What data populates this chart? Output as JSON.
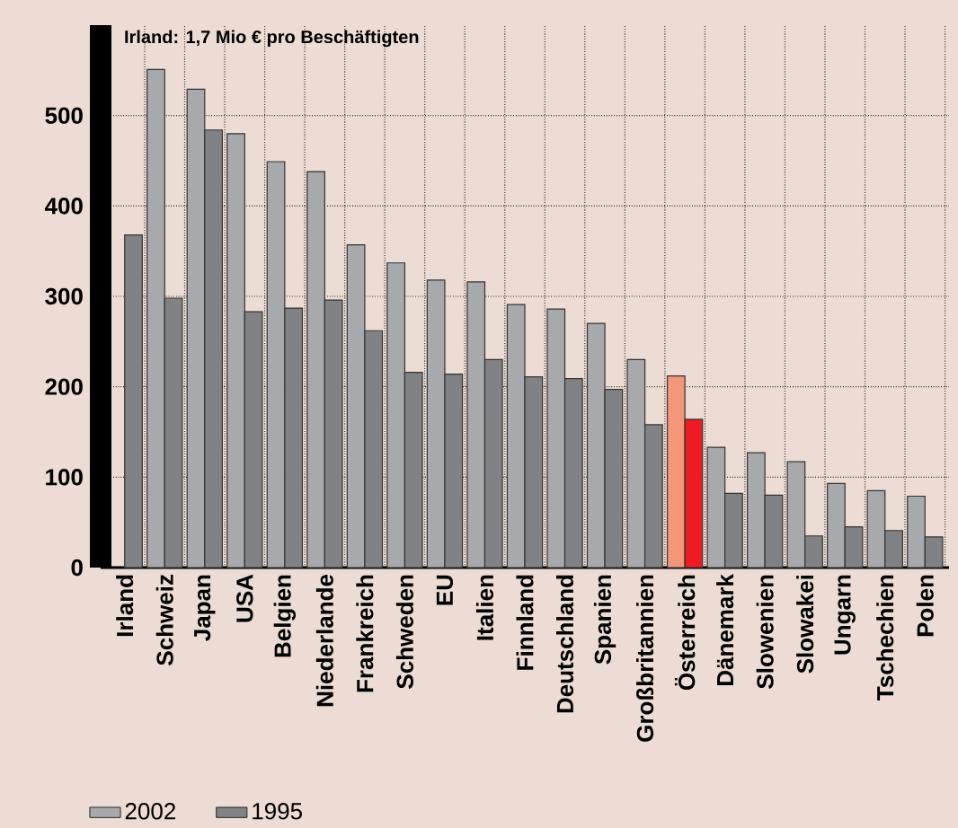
{
  "chart_data": {
    "type": "bar",
    "categories": [
      "Irland",
      "Schweiz",
      "Japan",
      "USA",
      "Belgien",
      "Niederlande",
      "Frankreich",
      "Schweden",
      "EU",
      "Italien",
      "Finnland",
      "Deutschland",
      "Spanien",
      "Großbritannien",
      "Österreich",
      "Dänemark",
      "Slowenien",
      "Slowakei",
      "Ungarn",
      "Tschechien",
      "Polen"
    ],
    "series": [
      {
        "name": "2002",
        "color": "#a7a9ac",
        "colors": [
          "#a7a9ac",
          "#a7a9ac",
          "#a7a9ac",
          "#a7a9ac",
          "#a7a9ac",
          "#a7a9ac",
          "#a7a9ac",
          "#a7a9ac",
          "#a7a9ac",
          "#a7a9ac",
          "#a7a9ac",
          "#a7a9ac",
          "#a7a9ac",
          "#a7a9ac",
          "#f4967a",
          "#a7a9ac",
          "#a7a9ac",
          "#a7a9ac",
          "#a7a9ac",
          "#a7a9ac",
          "#a7a9ac"
        ],
        "values": [
          null,
          551,
          529,
          480,
          449,
          438,
          357,
          337,
          318,
          316,
          291,
          286,
          270,
          230,
          212,
          133,
          127,
          117,
          93,
          85,
          79
        ]
      },
      {
        "name": "1995",
        "color": "#808285",
        "colors": [
          "#808285",
          "#808285",
          "#808285",
          "#808285",
          "#808285",
          "#808285",
          "#808285",
          "#808285",
          "#808285",
          "#808285",
          "#808285",
          "#808285",
          "#808285",
          "#808285",
          "#ed1c24",
          "#808285",
          "#808285",
          "#808285",
          "#808285",
          "#808285",
          "#808285"
        ],
        "values": [
          368,
          298,
          484,
          283,
          287,
          296,
          262,
          216,
          214,
          230,
          211,
          209,
          197,
          158,
          164,
          82,
          80,
          35,
          45,
          41,
          34
        ]
      }
    ],
    "ylim": [
      0,
      600
    ],
    "yticks": [
      0,
      100,
      200,
      300,
      400,
      500
    ],
    "grid": true,
    "legend": "bottom left",
    "annotations": [
      "Irland: 1,7 Mio € pro Beschäftigten"
    ]
  }
}
